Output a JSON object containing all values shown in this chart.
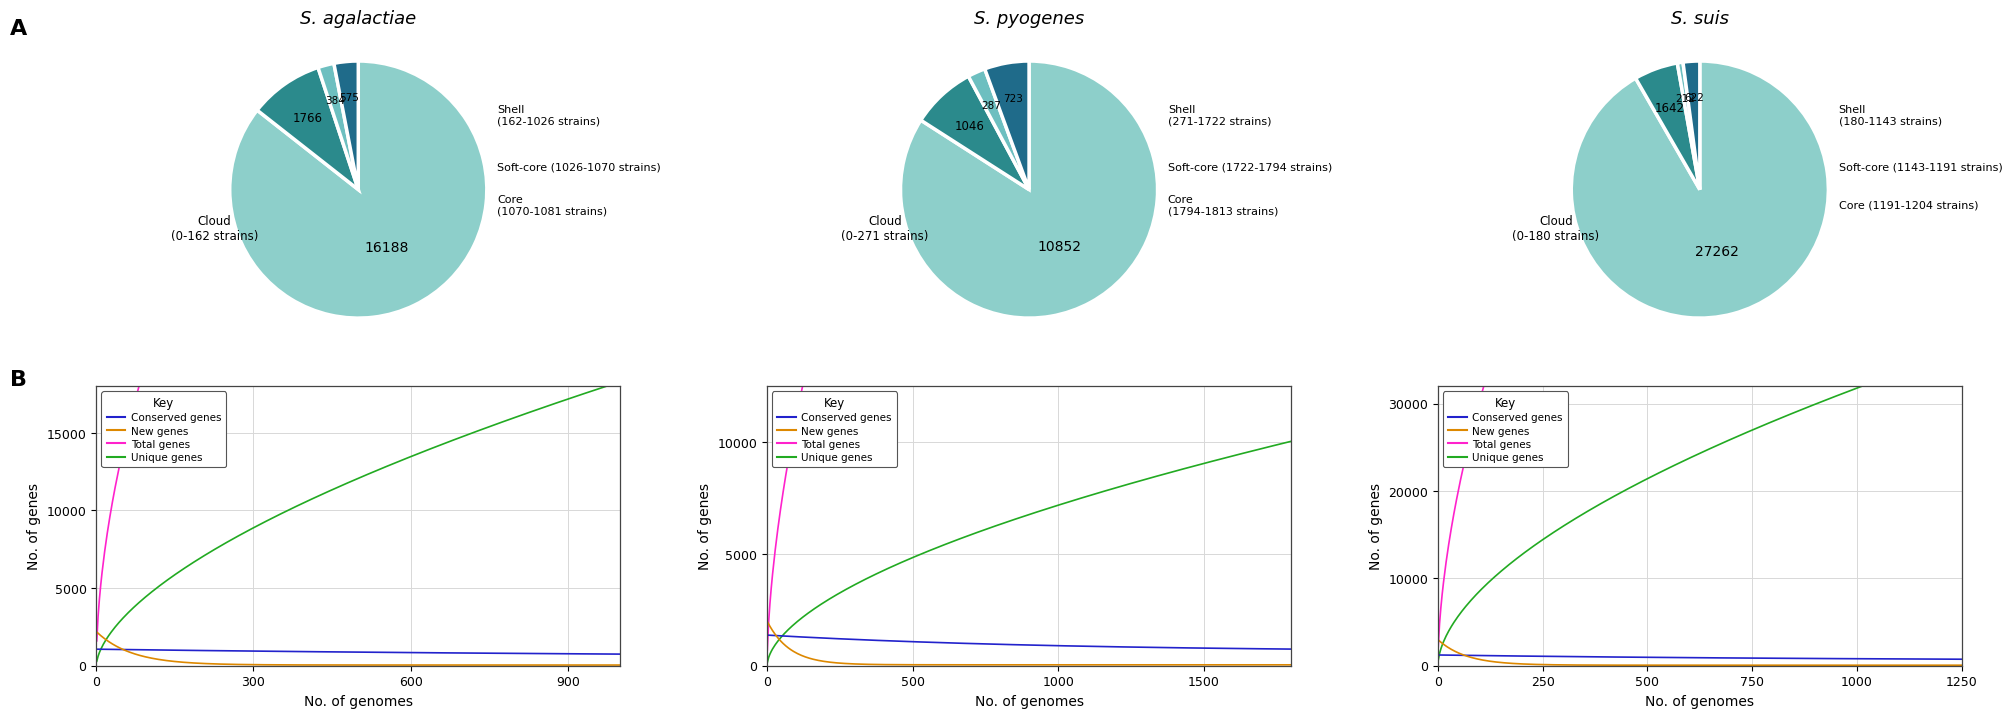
{
  "species": [
    "S. agalactiae",
    "S. pyogenes",
    "S. suis"
  ],
  "pie_data": [
    {
      "values": [
        16188,
        1766,
        384,
        575
      ],
      "labels_left": [
        "Cloud\n(0-162 strains)"
      ],
      "labels_right": [
        "Shell\n(162-1026 strains)",
        "Soft-core (1026-1070 strains)",
        "Core\n(1070-1081 strains)"
      ],
      "numbers": [
        "16188",
        "1766",
        "384",
        "575"
      ]
    },
    {
      "values": [
        10852,
        1046,
        287,
        723
      ],
      "labels_left": [
        "Cloud\n(0-271 strains)"
      ],
      "labels_right": [
        "Shell\n(271-1722 strains)",
        "Soft-core (1722-1794 strains)",
        "Core\n(1794-1813 strains)"
      ],
      "numbers": [
        "10852",
        "1046",
        "287",
        "723"
      ]
    },
    {
      "values": [
        27262,
        1642,
        212,
        622
      ],
      "labels_left": [
        "Cloud\n(0-180 strains)"
      ],
      "labels_right": [
        "Shell\n(180-1143 strains)",
        "Soft-core (1143-1191 strains)",
        "Core (1191-1204 strains)"
      ],
      "numbers": [
        "27262",
        "1642",
        "212",
        "622"
      ]
    }
  ],
  "pie_colors": [
    "#8dcfca",
    "#2b8a8c",
    "#6dbfc0",
    "#1f6b8a"
  ],
  "line_data": [
    {
      "xmax": 1000,
      "ymax": 18000,
      "yticks": [
        0,
        5000,
        10000,
        15000
      ],
      "xticks": [
        0,
        300,
        600,
        900
      ],
      "xlabel_max": 1000
    },
    {
      "xmax": 1800,
      "ymax": 12500,
      "yticks": [
        0,
        5000,
        10000
      ],
      "xticks": [
        0,
        500,
        1000,
        1500
      ],
      "xlabel_max": 1800
    },
    {
      "xmax": 1250,
      "ymax": 32000,
      "yticks": [
        0,
        10000,
        20000,
        30000
      ],
      "xticks": [
        0,
        250,
        500,
        750,
        1000,
        1250
      ],
      "xlabel_max": 1250
    }
  ],
  "line_colors": {
    "conserved": "#2222cc",
    "new_genes": "#dd8800",
    "total": "#ff22cc",
    "unique": "#22aa22"
  },
  "legend_labels": [
    "Conserved genes",
    "New genes",
    "Total genes",
    "Unique genes"
  ],
  "ylabel_line": "No. of genes",
  "xlabel_line": "No. of genomes",
  "bg_color": "#ffffff"
}
